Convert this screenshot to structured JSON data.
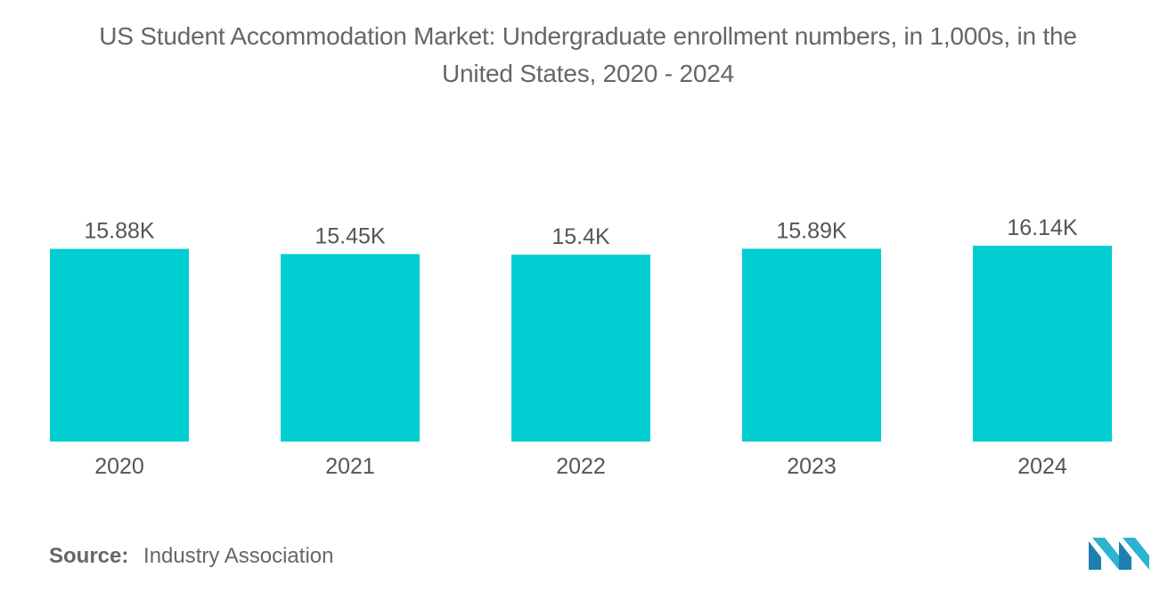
{
  "title_lines": [
    "US Student Accommodation Market: Undergraduate enrollment numbers, in 1,000s, in the",
    "United States, 2020 - 2024"
  ],
  "source": {
    "label": "Source:",
    "text": "Industry Association"
  },
  "colors": {
    "bar": "#00CED1",
    "text": "#555555",
    "logo": "#1aa3c7"
  },
  "logo_icon": "mordor-intelligence-logo-icon",
  "chart_data": {
    "type": "bar",
    "title": "US Student Accommodation Market: Undergraduate enrollment numbers, in 1,000s, in the United States, 2020 - 2024",
    "categories": [
      "2020",
      "2021",
      "2022",
      "2023",
      "2024"
    ],
    "values": [
      15.88,
      15.45,
      15.4,
      15.89,
      16.14
    ],
    "value_labels": [
      "15.88K",
      "15.45K",
      "15.4K",
      "15.89K",
      "16.14K"
    ],
    "xlabel": "",
    "ylabel": "",
    "ylim": [
      0,
      16.14
    ],
    "grid": false,
    "legend": "none"
  }
}
